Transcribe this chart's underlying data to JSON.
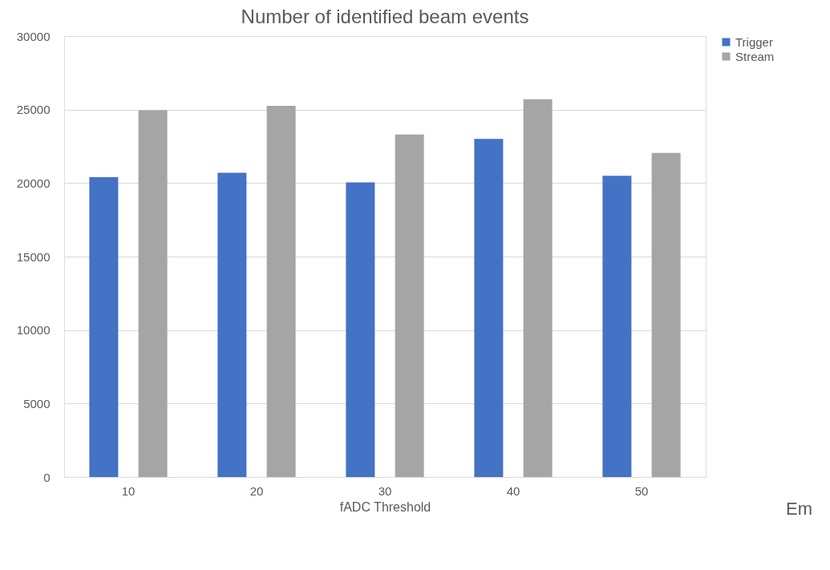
{
  "chart_data": {
    "type": "bar",
    "title": "Number of identified beam events",
    "xlabel": "fADC Threshold",
    "categories": [
      "10",
      "20",
      "30",
      "40",
      "50"
    ],
    "series": [
      {
        "name": "Trigger",
        "color": "#4472c4",
        "values": [
          20400,
          20700,
          20050,
          23000,
          20500
        ]
      },
      {
        "name": "Stream",
        "color": "#a5a5a5",
        "values": [
          24950,
          25250,
          23300,
          25700,
          22050
        ]
      }
    ],
    "ylim": [
      0,
      30000
    ],
    "yticks": [
      0,
      5000,
      10000,
      15000,
      20000,
      25000,
      30000
    ],
    "grid": "y",
    "legend": "right",
    "annotations": [
      "Em"
    ]
  }
}
